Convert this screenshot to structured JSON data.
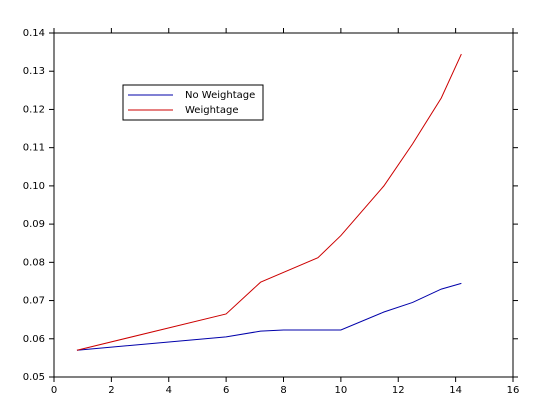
{
  "chart_data": {
    "type": "line",
    "series": [
      {
        "name": "No Weightage",
        "color": "#0000aa",
        "x": [
          0.8,
          6,
          7.2,
          8,
          10,
          11.5,
          12.5,
          13.5,
          14.2
        ],
        "values": [
          0.057,
          0.0605,
          0.062,
          0.0623,
          0.0623,
          0.067,
          0.0695,
          0.073,
          0.0745
        ]
      },
      {
        "name": "Weightage",
        "color": "#cc0000",
        "x": [
          0.8,
          6,
          7.2,
          9.2,
          10,
          11.5,
          12.5,
          13.5,
          14.2
        ],
        "values": [
          0.057,
          0.0665,
          0.0748,
          0.0812,
          0.087,
          0.1,
          0.111,
          0.123,
          0.1345
        ]
      }
    ],
    "xlim": [
      0,
      16
    ],
    "xticks": [
      0,
      2,
      4,
      6,
      8,
      10,
      12,
      14,
      16
    ],
    "ylim": [
      0.05,
      0.14
    ],
    "yticks": [
      0.05,
      0.06,
      0.07,
      0.08,
      0.09,
      {
        "value": 0.1,
        "label": "0.10"
      },
      0.11,
      0.12,
      0.13,
      0.14
    ],
    "legend": "upper left"
  }
}
